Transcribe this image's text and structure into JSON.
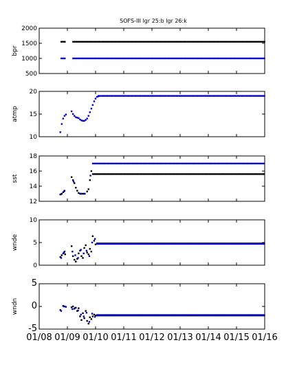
{
  "chart_data": {
    "title": "SOFS-III  lgr 25:b lgr 26:k",
    "x_ticks": [
      "01/08",
      "01/09",
      "01/10",
      "01/11",
      "01/12",
      "01/13",
      "01/14",
      "01/15",
      "01/16"
    ],
    "xlim": [
      0,
      8
    ],
    "colors": {
      "b": "#0000cc",
      "k": "#000000"
    },
    "panels": [
      {
        "type": "scatter",
        "ylabel": "bpr",
        "ylim": [
          500,
          2000
        ],
        "yticks": [
          500,
          1000,
          1500,
          2000
        ],
        "series": [
          {
            "name": "lgr 26:k",
            "color": "k",
            "segments": [
              {
                "x": [
                  0.78,
                  0.92
                ],
                "y": 1550
              },
              {
                "x": [
                  1.2,
                  8.0
                ],
                "y": 1550
              }
            ]
          },
          {
            "name": "lgr 25:b",
            "color": "b",
            "segments": [
              {
                "x": [
                  0.78,
                  0.92
                ],
                "y": 1000
              },
              {
                "x": [
                  1.2,
                  8.0
                ],
                "y": 1000
              }
            ]
          }
        ]
      },
      {
        "type": "scatter",
        "ylabel": "atmp",
        "ylim": [
          10,
          20
        ],
        "yticks": [
          10,
          15,
          20
        ],
        "series": [
          {
            "name": "atmp",
            "color": "b",
            "points": [
              [
                0.75,
                11.0
              ],
              [
                0.8,
                12.8
              ],
              [
                0.85,
                14.0
              ],
              [
                0.9,
                14.6
              ],
              [
                0.95,
                14.9
              ],
              [
                1.15,
                15.6
              ],
              [
                1.2,
                15.0
              ],
              [
                1.25,
                14.6
              ],
              [
                1.3,
                14.3
              ],
              [
                1.35,
                14.2
              ],
              [
                1.4,
                14.1
              ],
              [
                1.45,
                13.8
              ],
              [
                1.5,
                13.6
              ],
              [
                1.55,
                13.5
              ],
              [
                1.6,
                13.5
              ],
              [
                1.65,
                13.7
              ],
              [
                1.7,
                14.0
              ],
              [
                1.75,
                14.6
              ],
              [
                1.8,
                15.4
              ],
              [
                1.85,
                16.2
              ],
              [
                1.9,
                17.0
              ],
              [
                1.95,
                17.8
              ],
              [
                2.0,
                18.4
              ],
              [
                2.05,
                18.8
              ],
              [
                2.1,
                18.9
              ]
            ],
            "segments": [
              {
                "x": [
                  2.1,
                  8.0
                ],
                "y": 19.0
              }
            ]
          }
        ]
      },
      {
        "type": "scatter",
        "ylabel": "sst",
        "ylim": [
          12,
          18
        ],
        "yticks": [
          12,
          14,
          16,
          18
        ],
        "series": [
          {
            "name": "lgr 26:k",
            "color": "k",
            "points": [
              [
                0.75,
                12.9
              ],
              [
                0.8,
                13.0
              ],
              [
                0.85,
                13.2
              ],
              [
                0.9,
                13.4
              ],
              [
                1.15,
                15.2
              ],
              [
                1.2,
                14.8
              ],
              [
                1.25,
                14.4
              ],
              [
                1.3,
                13.8
              ],
              [
                1.35,
                13.4
              ],
              [
                1.4,
                13.1
              ],
              [
                1.45,
                13.0
              ],
              [
                1.5,
                13.0
              ],
              [
                1.55,
                13.0
              ],
              [
                1.6,
                13.0
              ],
              [
                1.7,
                13.3
              ],
              [
                1.75,
                13.6
              ],
              [
                1.8,
                14.8
              ],
              [
                1.85,
                16.0
              ]
            ],
            "segments": [
              {
                "x": [
                  1.9,
                  8.0
                ],
                "y": 15.6
              }
            ]
          },
          {
            "name": "lgr 25:b",
            "color": "b",
            "points": [
              [
                0.78,
                12.95
              ],
              [
                0.88,
                13.3
              ],
              [
                1.22,
                14.6
              ],
              [
                1.48,
                13.0
              ],
              [
                1.62,
                13.0
              ],
              [
                1.82,
                15.4
              ]
            ],
            "segments": [
              {
                "x": [
                  1.9,
                  8.0
                ],
                "y": 17.0
              }
            ]
          }
        ]
      },
      {
        "type": "scatter",
        "ylabel": "wnde",
        "ylim": [
          0,
          10
        ],
        "yticks": [
          0,
          5,
          10
        ],
        "series": [
          {
            "name": "lgr 26:k",
            "color": "k",
            "points": [
              [
                0.75,
                1.8
              ],
              [
                0.8,
                2.2
              ],
              [
                0.88,
                2.8
              ],
              [
                0.92,
                2.4
              ],
              [
                1.15,
                4.2
              ],
              [
                1.2,
                2.0
              ],
              [
                1.25,
                1.2
              ],
              [
                1.3,
                0.8
              ],
              [
                1.35,
                1.4
              ],
              [
                1.4,
                2.6
              ],
              [
                1.45,
                3.2
              ],
              [
                1.5,
                2.0
              ],
              [
                1.55,
                1.6
              ],
              [
                1.6,
                3.8
              ],
              [
                1.65,
                4.4
              ],
              [
                1.7,
                2.8
              ],
              [
                1.75,
                2.4
              ],
              [
                1.8,
                3.6
              ],
              [
                1.85,
                3.0
              ],
              [
                1.9,
                6.4
              ],
              [
                1.95,
                5.4
              ],
              [
                2.0,
                4.6
              ]
            ],
            "segments": [
              {
                "x": [
                  2.05,
                  8.0
                ],
                "y": 4.8
              }
            ]
          },
          {
            "name": "lgr 25:b",
            "color": "b",
            "points": [
              [
                0.78,
                1.6
              ],
              [
                0.85,
                2.6
              ],
              [
                0.9,
                3.0
              ],
              [
                1.18,
                3.0
              ],
              [
                1.28,
                2.2
              ],
              [
                1.38,
                1.6
              ],
              [
                1.48,
                3.4
              ],
              [
                1.58,
                2.6
              ],
              [
                1.68,
                3.2
              ],
              [
                1.78,
                2.0
              ],
              [
                1.88,
                5.0
              ],
              [
                1.98,
                5.8
              ]
            ],
            "segments": [
              {
                "x": [
                  2.05,
                  8.0
                ],
                "y": 4.7
              }
            ]
          }
        ]
      },
      {
        "type": "scatter",
        "ylabel": "wndn",
        "ylim": [
          -5,
          5
        ],
        "yticks": [
          -5,
          0,
          5
        ],
        "series": [
          {
            "name": "lgr 26:k",
            "color": "k",
            "points": [
              [
                0.75,
                -0.8
              ],
              [
                0.85,
                0.1
              ],
              [
                0.9,
                0.0
              ],
              [
                1.15,
                -0.2
              ],
              [
                1.2,
                0.0
              ],
              [
                1.25,
                -0.5
              ],
              [
                1.3,
                -0.3
              ],
              [
                1.35,
                -1.0
              ],
              [
                1.4,
                -0.4
              ],
              [
                1.45,
                -2.2
              ],
              [
                1.5,
                -3.0
              ],
              [
                1.55,
                -1.5
              ],
              [
                1.6,
                -2.6
              ],
              [
                1.65,
                -1.0
              ],
              [
                1.7,
                -3.2
              ],
              [
                1.75,
                -3.8
              ],
              [
                1.8,
                -2.4
              ],
              [
                1.85,
                -2.8
              ],
              [
                1.9,
                -2.2
              ],
              [
                1.95,
                -1.8
              ],
              [
                2.0,
                -2.0
              ]
            ],
            "segments": [
              {
                "x": [
                  2.05,
                  8.0
                ],
                "y": -2.0
              }
            ]
          },
          {
            "name": "lgr 25:b",
            "color": "b",
            "points": [
              [
                0.78,
                -1.0
              ],
              [
                0.88,
                0.0
              ],
              [
                0.95,
                -0.1
              ],
              [
                1.18,
                -0.6
              ],
              [
                1.28,
                -0.3
              ],
              [
                1.38,
                -0.9
              ],
              [
                1.48,
                -1.8
              ],
              [
                1.58,
                -2.2
              ],
              [
                1.68,
                -1.4
              ],
              [
                1.78,
                -3.4
              ],
              [
                1.88,
                -1.6
              ],
              [
                1.98,
                -2.3
              ]
            ],
            "segments": [
              {
                "x": [
                  2.05,
                  8.0
                ],
                "y": -1.9
              }
            ]
          }
        ]
      }
    ]
  }
}
